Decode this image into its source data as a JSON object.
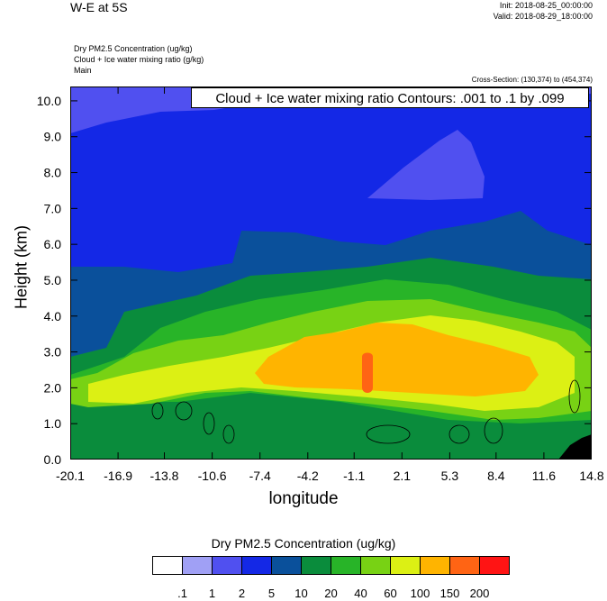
{
  "header": {
    "title": "W-E at 5S",
    "init": "Init: 2018-08-25_00:00:00",
    "valid": "Valid: 2018-08-29_18:00:00",
    "subtitle_lines": [
      "Dry PM2.5 Concentration   (ug/kg)",
      "Cloud + Ice water mixing ratio   (g/kg)",
      "Main"
    ],
    "cross_section": "Cross-Section: (130,374) to (454,374)",
    "contour_label": "Cloud + Ice water mixing ratio Contours: .001 to .1 by .099"
  },
  "chart_data": {
    "type": "heatmap",
    "xlabel": "longitude",
    "ylabel": "Height (km)",
    "x_ticks": [
      "-20.1",
      "-16.9",
      "-13.8",
      "-10.6",
      "-7.4",
      "-4.2",
      "-1.1",
      "2.1",
      "5.3",
      "8.4",
      "11.6",
      "14.8"
    ],
    "y_ticks": [
      "0.0",
      "1.0",
      "2.0",
      "3.0",
      "4.0",
      "5.0",
      "6.0",
      "7.0",
      "8.0",
      "9.0",
      "10.0"
    ],
    "xlim": [
      -20.1,
      14.8
    ],
    "ylim": [
      0,
      10.4
    ],
    "colorbar": {
      "title": "Dry PM2.5 Concentration  (ug/kg)",
      "labels": [
        ".1",
        "1",
        "2",
        "5",
        "10",
        "20",
        "40",
        "60",
        "100",
        "150",
        "200"
      ],
      "colors": [
        "#ffffff",
        "#a0a0f5",
        "#5050f0",
        "#1428e6",
        "#0a509b",
        "#0a8c3c",
        "#28b428",
        "#78d214",
        "#dcf014",
        "#ffb400",
        "#ff6414",
        "#ff1414"
      ]
    }
  }
}
